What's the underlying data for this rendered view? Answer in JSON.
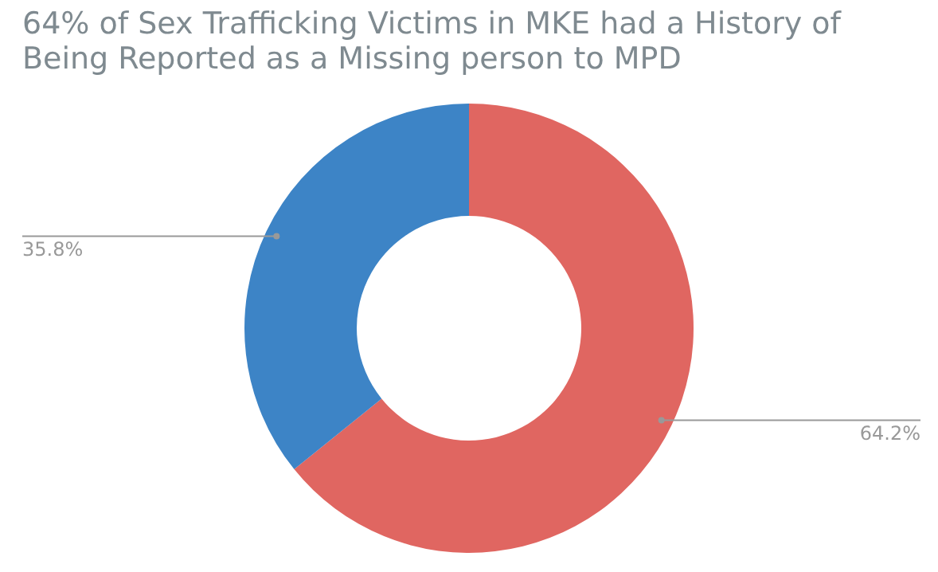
{
  "chart_data": {
    "type": "donut",
    "title": "64% of Sex Trafficking Victims in MKE had a History of Being Reported as a Missing person to MPD",
    "categories": [
      null,
      null
    ],
    "values": [
      64.2,
      35.8
    ],
    "colors": [
      "#e06661",
      "#3d84c6"
    ],
    "value_labels": [
      "64.2%",
      "35.8%"
    ],
    "legend": false
  }
}
